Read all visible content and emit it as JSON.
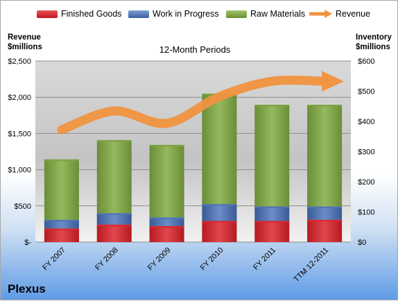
{
  "legend": {
    "finished": "Finished Goods",
    "wip": "Work in Progress",
    "raw": "Raw Materials",
    "revenue": "Revenue"
  },
  "left_axis": {
    "line1": "Revenue",
    "line2": "$millions"
  },
  "right_axis": {
    "line1": "Inventory",
    "line2": "$millions"
  },
  "subtitle": "12-Month Periods",
  "company": "Plexus",
  "colors": {
    "finished": "#d7282f",
    "wip": "#4f74b3",
    "raw": "#7ea343",
    "revenue": "#f0923f"
  },
  "chart_data": {
    "type": "bar",
    "stacked": true,
    "categories": [
      "FY 2007",
      "FY 2008",
      "FY 2009",
      "FY 2010",
      "FY 2011",
      "TTM 12-2011"
    ],
    "series": [
      {
        "name": "Finished Goods",
        "axis": "right",
        "values": [
          45,
          58,
          53,
          70,
          70,
          74
        ]
      },
      {
        "name": "Work in Progress",
        "axis": "right",
        "values": [
          29,
          38,
          29,
          56,
          48,
          44
        ]
      },
      {
        "name": "Raw Materials",
        "axis": "right",
        "values": [
          200,
          242,
          240,
          366,
          337,
          337
        ]
      },
      {
        "name": "Revenue",
        "type": "line",
        "axis": "left",
        "values": [
          1550,
          1810,
          1640,
          2010,
          2220,
          2220
        ]
      }
    ],
    "y_left_ticks": [
      "$-",
      "$500",
      "$1,000",
      "$1,500",
      "$2,000",
      "$2,500"
    ],
    "y_right_ticks": [
      "$0",
      "$100",
      "$200",
      "$300",
      "$400",
      "$500",
      "$600"
    ],
    "y_left_range": [
      0,
      2500
    ],
    "y_right_range": [
      0,
      600
    ],
    "grid": true,
    "legend_position": "top"
  }
}
